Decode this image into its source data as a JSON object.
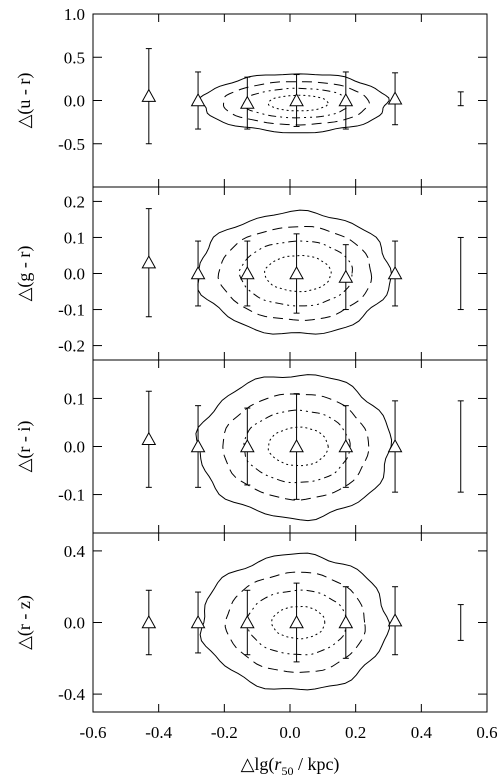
{
  "chart_data": {
    "type": "scatter",
    "xlabel": "△lg(r50 / kpc)",
    "xlim": [
      -0.6,
      0.6
    ],
    "x_ticks": [
      -0.6,
      -0.4,
      -0.2,
      0.0,
      0.2,
      0.4,
      0.6
    ],
    "x_tick_labels": [
      "-0.6",
      "-0.4",
      "-0.2",
      "0.0",
      "0.2",
      "0.4",
      "0.6"
    ],
    "panels": [
      {
        "ylabel": "△(u - r)",
        "ylim": [
          -1.0,
          1.0
        ],
        "y_ticks": [
          1.0,
          0.5,
          0.0,
          -0.5
        ],
        "y_tick_labels": [
          "1.0",
          "0.5",
          "0.0",
          "-0.5"
        ],
        "points": [
          {
            "x": -0.43,
            "y": 0.05,
            "err": 0.55
          },
          {
            "x": -0.28,
            "y": 0.0,
            "err": 0.33
          },
          {
            "x": -0.13,
            "y": -0.03,
            "err": 0.3
          },
          {
            "x": 0.02,
            "y": 0.0,
            "err": 0.3
          },
          {
            "x": 0.17,
            "y": 0.0,
            "err": 0.33
          },
          {
            "x": 0.32,
            "y": 0.02,
            "err": 0.3
          }
        ],
        "typical_error": {
          "x": 0.52,
          "y": 0.02,
          "err": 0.08
        },
        "contours": {
          "center": [
            0.03,
            -0.03
          ],
          "rx": [
            0.28,
            0.22,
            0.16,
            0.09
          ],
          "ry": [
            0.34,
            0.25,
            0.17,
            0.09
          ]
        }
      },
      {
        "ylabel": "△(g - r)",
        "ylim": [
          -0.24,
          0.24
        ],
        "y_ticks": [
          0.2,
          0.1,
          0.0,
          -0.1,
          -0.2
        ],
        "y_tick_labels": [
          "0.2",
          "0.1",
          "0.0",
          "-0.1",
          "-0.2"
        ],
        "points": [
          {
            "x": -0.43,
            "y": 0.03,
            "err": 0.15
          },
          {
            "x": -0.28,
            "y": 0.0,
            "err": 0.09
          },
          {
            "x": -0.13,
            "y": 0.0,
            "err": 0.09
          },
          {
            "x": 0.02,
            "y": 0.0,
            "err": 0.11
          },
          {
            "x": 0.17,
            "y": -0.01,
            "err": 0.09
          },
          {
            "x": 0.32,
            "y": 0.0,
            "err": 0.09
          }
        ],
        "typical_error": {
          "x": 0.52,
          "y": 0.0,
          "err": 0.1
        },
        "contours": {
          "center": [
            0.03,
            0.0
          ],
          "rx": [
            0.29,
            0.23,
            0.17,
            0.1
          ],
          "ry": [
            0.17,
            0.13,
            0.09,
            0.05
          ]
        }
      },
      {
        "ylabel": "△(r - i)",
        "ylim": [
          -0.18,
          0.18
        ],
        "y_ticks": [
          0.1,
          0.0,
          -0.1
        ],
        "y_tick_labels": [
          "0.1",
          "0.0",
          "-0.1"
        ],
        "points": [
          {
            "x": -0.43,
            "y": 0.015,
            "err": 0.1
          },
          {
            "x": -0.28,
            "y": 0.0,
            "err": 0.085
          },
          {
            "x": -0.13,
            "y": 0.0,
            "err": 0.08
          },
          {
            "x": 0.02,
            "y": 0.0,
            "err": 0.11
          },
          {
            "x": 0.17,
            "y": 0.0,
            "err": 0.085
          },
          {
            "x": 0.32,
            "y": 0.0,
            "err": 0.095
          }
        ],
        "typical_error": {
          "x": 0.52,
          "y": 0.0,
          "err": 0.095
        },
        "contours": {
          "center": [
            0.03,
            0.0
          ],
          "rx": [
            0.29,
            0.22,
            0.16,
            0.09
          ],
          "ry": [
            0.15,
            0.11,
            0.075,
            0.04
          ]
        }
      },
      {
        "ylabel": "△(r - z)",
        "ylim": [
          -0.5,
          0.5
        ],
        "y_ticks": [
          0.4,
          0.0,
          -0.4
        ],
        "y_tick_labels": [
          "0.4",
          "0.0",
          "-0.4"
        ],
        "points": [
          {
            "x": -0.43,
            "y": 0.0,
            "err": 0.18
          },
          {
            "x": -0.28,
            "y": 0.0,
            "err": 0.17
          },
          {
            "x": -0.13,
            "y": 0.0,
            "err": 0.18
          },
          {
            "x": 0.02,
            "y": 0.0,
            "err": 0.22
          },
          {
            "x": 0.17,
            "y": 0.0,
            "err": 0.2
          },
          {
            "x": 0.32,
            "y": 0.01,
            "err": 0.19
          }
        ],
        "typical_error": {
          "x": 0.52,
          "y": 0.0,
          "err": 0.1
        },
        "contours": {
          "center": [
            0.03,
            0.0
          ],
          "rx": [
            0.28,
            0.21,
            0.15,
            0.08
          ],
          "ry": [
            0.38,
            0.28,
            0.18,
            0.09
          ]
        }
      }
    ]
  }
}
